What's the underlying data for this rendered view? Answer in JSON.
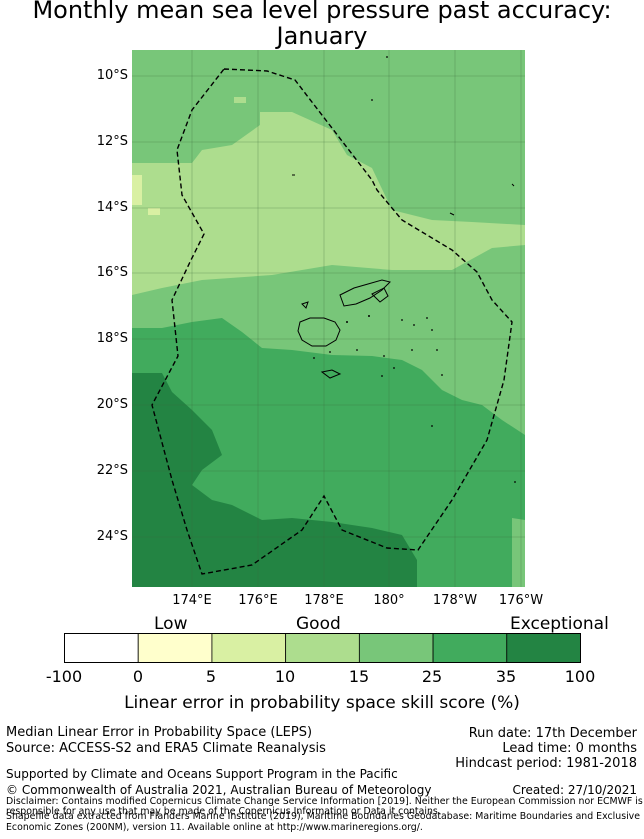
{
  "title": {
    "line1": "Monthly mean sea level pressure past accuracy:",
    "line2": "January"
  },
  "map": {
    "lat_labels": [
      "10°S",
      "12°S",
      "14°S",
      "16°S",
      "18°S",
      "20°S",
      "22°S",
      "24°S"
    ],
    "lon_labels": [
      "174°E",
      "176°E",
      "178°E",
      "180°",
      "178°W",
      "176°W"
    ],
    "boundary_style": "dashed",
    "boundary_name": "Exclusive Economic Zone"
  },
  "colorbar": {
    "categories": {
      "low": "Low",
      "good": "Good",
      "exceptional": "Exceptional"
    },
    "ticks": [
      "-100",
      "0",
      "5",
      "10",
      "15",
      "25",
      "35",
      "100"
    ],
    "colors": [
      "#ffffff",
      "#ffffcc",
      "#d9f0a3",
      "#addd8e",
      "#78c679",
      "#41ab5d",
      "#238443"
    ],
    "label": "Linear error in probability space skill score (%)"
  },
  "footer": {
    "method": "Median Linear Error in Probability Space (LEPS)",
    "source": "Source: ACCESS-S2 and ERA5 Climate Reanalysis",
    "run_date": "Run date: 17th December",
    "lead_time": "Lead time: 0 months",
    "hindcast": "Hindcast period: 1981-2018",
    "support": "Supported by Climate and Oceans Support Program in the Pacific",
    "copyright": "© Commonwealth of Australia 2021, Australian Bureau of Meteorology",
    "created": "Created: 27/10/2021",
    "disclaimer1": "Disclaimer: Contains modified Copernicus Climate Change Service Information [2019]. Neither the European Commission nor ECMWF is",
    "disclaimer2": "responsible for any use that may be made of the Copernicus Information or Data it contains.",
    "shapefile1": "Shapefile data extracted from Flanders Marine Institute (2019), Maritime Boundaries Geodatabase: Maritime Boundaries and Exclusive",
    "shapefile2": "Economic Zones (200NM), version 11. Available online at http://www.marineregions.org/."
  }
}
